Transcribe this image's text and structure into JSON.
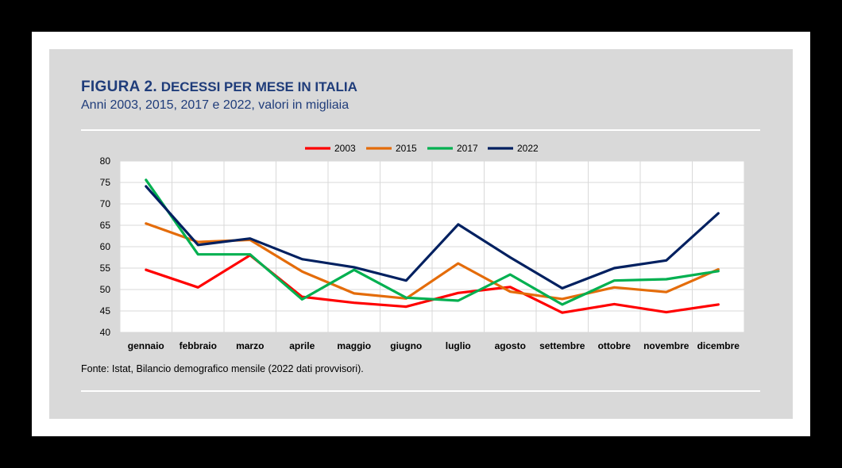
{
  "figure": {
    "label": "FIGURA 2.",
    "title": "DECESSI PER MESE IN ITALIA",
    "subtitle": "Anni 2003, 2015, 2017 e 2022, valori in migliaia",
    "source": "Fonte: Istat, Bilancio demografico mensile (2022 dati provvisori)."
  },
  "chart_data": {
    "type": "line",
    "title": "",
    "xlabel": "",
    "ylabel": "",
    "categories": [
      "gennaio",
      "febbraio",
      "marzo",
      "aprile",
      "maggio",
      "giugno",
      "luglio",
      "agosto",
      "settembre",
      "ottobre",
      "novembre",
      "dicembre"
    ],
    "ylim": [
      40,
      80
    ],
    "yticks": [
      40,
      45,
      50,
      55,
      60,
      65,
      70,
      75,
      80
    ],
    "grid": true,
    "legend_position": "top",
    "series": [
      {
        "name": "2003",
        "color": "#ff0000",
        "values": [
          54.6,
          50.5,
          58.0,
          48.3,
          46.9,
          46.0,
          49.2,
          50.6,
          44.6,
          46.6,
          44.7,
          46.5
        ]
      },
      {
        "name": "2015",
        "color": "#e46c0a",
        "values": [
          65.4,
          61.1,
          61.6,
          54.2,
          49.1,
          47.9,
          56.1,
          49.5,
          47.8,
          50.5,
          49.4,
          54.7
        ]
      },
      {
        "name": "2017",
        "color": "#00b050",
        "values": [
          75.6,
          58.2,
          58.2,
          47.7,
          54.6,
          48.1,
          47.4,
          53.5,
          46.5,
          52.1,
          52.4,
          54.3
        ]
      },
      {
        "name": "2022",
        "color": "#002060",
        "values": [
          74.1,
          60.4,
          61.9,
          57.1,
          55.2,
          52.1,
          65.2,
          57.5,
          50.3,
          55.0,
          56.8,
          67.8
        ]
      }
    ]
  }
}
